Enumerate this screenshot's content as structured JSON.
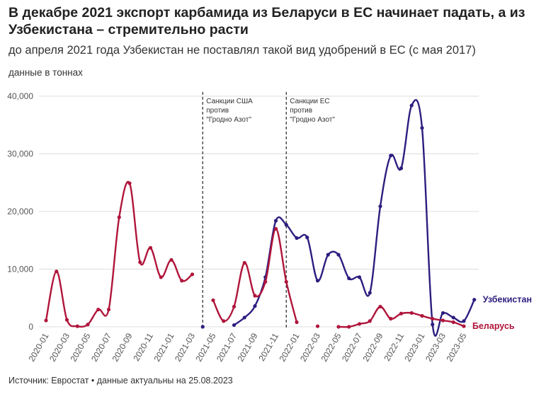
{
  "title": "В декабре 2021 экспорт карбамида из Беларуси в ЕС начинает падать, а из Узбекистана – стремительно расти",
  "subtitle": "до апреля 2021 года Узбекистан не поставлял такой вид удобрений в ЕС (с мая 2017)",
  "units_note": "данные в тоннах",
  "source": "Источник: Евростат • данные актуальны на 25.08.2023",
  "colors": {
    "uzbekistan": "#2c1e7f",
    "belarus": "#b0153b",
    "grid": "#dddddd"
  },
  "chart_data": {
    "type": "line",
    "ylim": [
      0,
      40000
    ],
    "yticks": [
      0,
      10000,
      20000,
      30000,
      40000
    ],
    "ytick_labels": [
      "0",
      "10,000",
      "20,000",
      "30,000",
      "40,000"
    ],
    "x": [
      "2020-01",
      "2020-02",
      "2020-03",
      "2020-04",
      "2020-05",
      "2020-06",
      "2020-07",
      "2020-08",
      "2020-09",
      "2020-10",
      "2020-11",
      "2020-12",
      "2021-01",
      "2021-02",
      "2021-03",
      "2021-04",
      "2021-05",
      "2021-06",
      "2021-07",
      "2021-08",
      "2021-09",
      "2021-10",
      "2021-11",
      "2021-12",
      "2022-01",
      "2022-02",
      "2022-03",
      "2022-04",
      "2022-05",
      "2022-06",
      "2022-07",
      "2022-08",
      "2022-09",
      "2022-10",
      "2022-11",
      "2022-12",
      "2023-01",
      "2023-02",
      "2023-03",
      "2023-04",
      "2023-05",
      "2023-06"
    ],
    "xtick_labels": [
      "2020-01",
      "2020-03",
      "2020-05",
      "2020-07",
      "2020-09",
      "2020-11",
      "2021-01",
      "2021-03",
      "2021-05",
      "2021-07",
      "2021-09",
      "2021-11",
      "2022-01",
      "2022-03",
      "2022-05",
      "2022-07",
      "2022-09",
      "2022-11",
      "2023-01",
      "2023-03",
      "2023-05"
    ],
    "series": [
      {
        "name": "Узбекистан",
        "values": [
          null,
          null,
          null,
          null,
          null,
          null,
          null,
          null,
          null,
          null,
          null,
          null,
          null,
          null,
          null,
          0,
          null,
          null,
          300,
          1600,
          3600,
          8600,
          18400,
          17700,
          15400,
          15500,
          8000,
          12500,
          12500,
          8400,
          8600,
          5900,
          20900,
          29700,
          27500,
          38400,
          34500,
          400,
          2400,
          1600,
          1000,
          4700
        ]
      },
      {
        "name": "Беларусь",
        "values": [
          1100,
          9600,
          1200,
          100,
          400,
          3000,
          3000,
          19000,
          24900,
          11200,
          13700,
          8600,
          11600,
          8000,
          9100,
          null,
          4600,
          1000,
          3500,
          11100,
          5400,
          7800,
          17000,
          7800,
          800,
          null,
          100,
          null,
          0,
          0,
          500,
          1000,
          3500,
          1400,
          2300,
          2400,
          1900,
          1400,
          1100,
          800,
          100,
          null
        ]
      }
    ],
    "annotations": [
      {
        "x": "2021-04",
        "lines": [
          "Санкции США",
          "против",
          "\"Гродно Азот\""
        ]
      },
      {
        "x": "2021-12",
        "lines": [
          "Санкции ЕС",
          "против",
          "\"Гродно Азот\""
        ]
      }
    ]
  }
}
